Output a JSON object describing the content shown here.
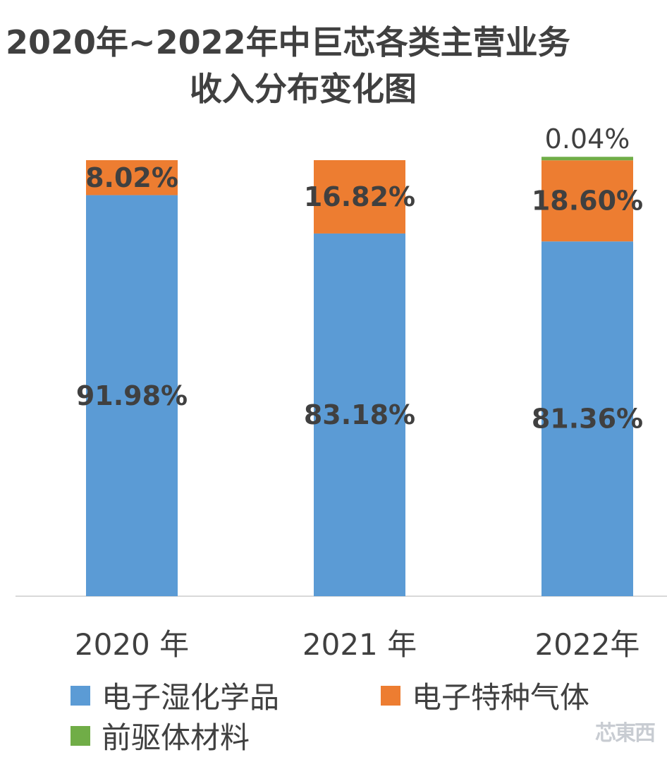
{
  "title_line1": "2020年~2022年中巨芯各类主营业务",
  "title_line2": "收入分布变化图",
  "colors": {
    "wet": "#5B9BD5",
    "gas": "#ED7D31",
    "precursor": "#70AD47",
    "label": "#404040",
    "axis": "#D9D9D9"
  },
  "chart_data": {
    "type": "bar",
    "stacked": true,
    "categories": [
      "2020 年",
      "2021 年",
      "2022年"
    ],
    "series": [
      {
        "name": "电子湿化学品",
        "values": [
          91.98,
          83.18,
          81.36
        ],
        "labels": [
          "91.98%",
          "83.18%",
          "81.36%"
        ]
      },
      {
        "name": "电子特种气体",
        "values": [
          8.02,
          16.82,
          18.6
        ],
        "labels": [
          "8.02%",
          "16.82%",
          "18.60%"
        ]
      },
      {
        "name": "前驱体材料",
        "values": [
          0,
          0,
          0.04
        ],
        "labels": [
          "",
          "",
          "0.04%"
        ]
      }
    ],
    "ylim": [
      0,
      100
    ],
    "legend_position": "bottom"
  },
  "legend": [
    "电子湿化学品",
    "电子特种气体",
    "前驱体材料"
  ],
  "watermark": "芯東西"
}
